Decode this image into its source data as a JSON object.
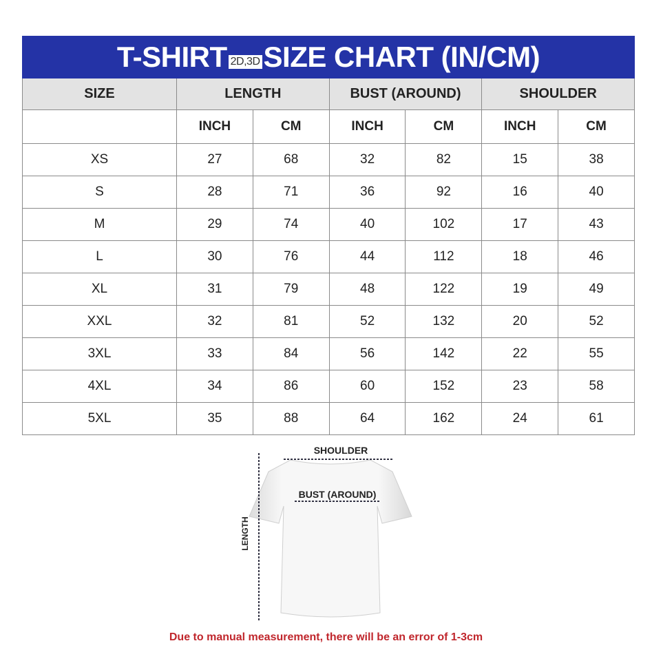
{
  "title": {
    "before": "T-SHIRT",
    "tag": "2D,3D",
    "after": "SIZE CHART (IN/CM)"
  },
  "headers": {
    "size": "SIZE",
    "length": "LENGTH",
    "bust": "BUST (AROUND)",
    "shoulder": "SHOULDER",
    "inch": "INCH",
    "cm": "CM"
  },
  "rows": [
    [
      "XS",
      "27",
      "68",
      "32",
      "82",
      "15",
      "38"
    ],
    [
      "S",
      "28",
      "71",
      "36",
      "92",
      "16",
      "40"
    ],
    [
      "M",
      "29",
      "74",
      "40",
      "102",
      "17",
      "43"
    ],
    [
      "L",
      "30",
      "76",
      "44",
      "112",
      "18",
      "46"
    ],
    [
      "XL",
      "31",
      "79",
      "48",
      "122",
      "19",
      "49"
    ],
    [
      "XXL",
      "32",
      "81",
      "52",
      "132",
      "20",
      "52"
    ],
    [
      "3XL",
      "33",
      "84",
      "56",
      "142",
      "22",
      "55"
    ],
    [
      "4XL",
      "34",
      "86",
      "60",
      "152",
      "23",
      "58"
    ],
    [
      "5XL",
      "35",
      "88",
      "64",
      "162",
      "24",
      "61"
    ]
  ],
  "diagram": {
    "shoulder": "SHOULDER",
    "bust": "BUST (AROUND)",
    "length": "LENGTH"
  },
  "note": "Due to manual measurement, there will be an error of 1-3cm",
  "colors": {
    "title_bg": "#2433a6",
    "header_bg": "#e3e3e3",
    "note": "#c0262c"
  }
}
